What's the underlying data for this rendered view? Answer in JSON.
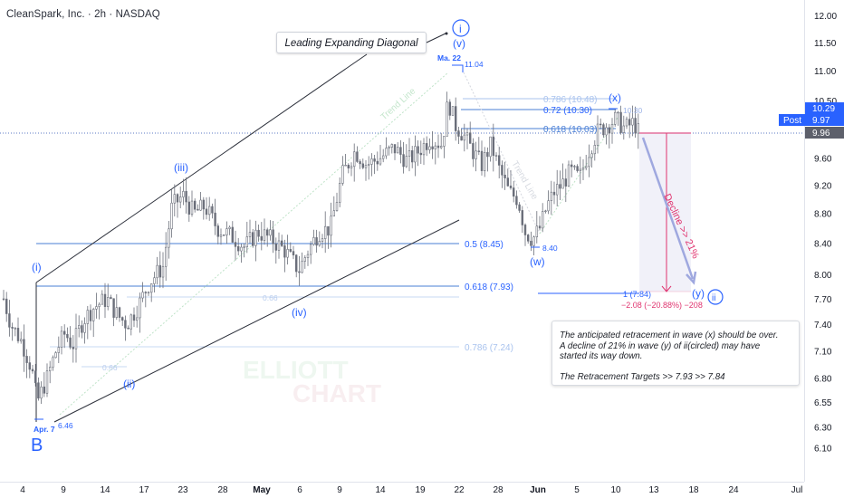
{
  "header": {
    "title": "CleanSpark, Inc. · 2h · NASDAQ"
  },
  "callout": {
    "text": "Leading Expanding Diagonal"
  },
  "note": {
    "line1": "The anticipated retracement in wave (x) should be over.",
    "line2": "A decline of 21% in wave (y) of ii(circled) may have",
    "line3": "started its way down.",
    "targets": "The Retracement Targets  >> 7.93  >>  7.84"
  },
  "watermark": {
    "line1": "ELLIOTT",
    "line2": "CHART"
  },
  "colors": {
    "wave_blue": "#2962ff",
    "fib_blue": "#4a7fd6",
    "fib_faint": "#a9c3ee",
    "decline_pink": "#e0346f",
    "post_blue": "#2962ff",
    "last_gray": "#5d606b"
  },
  "chart_data": {
    "type": "candlestick",
    "symbol": "CleanSpark, Inc.",
    "interval": "2h",
    "exchange": "NASDAQ",
    "y_axis": {
      "scale": "log",
      "ylim": [
        5.95,
        12.15
      ],
      "ticks": [
        "12.00",
        "11.50",
        "11.00",
        "10.50",
        "10.00",
        "9.60",
        "9.20",
        "8.80",
        "8.40",
        "8.00",
        "7.70",
        "7.40",
        "7.10",
        "6.80",
        "6.55",
        "6.30",
        "6.10"
      ]
    },
    "x_axis": {
      "ticks": [
        "4",
        "9",
        "14",
        "17",
        "23",
        "28",
        "May",
        "6",
        "9",
        "14",
        "19",
        "22",
        "28",
        "Jun",
        "5",
        "10",
        "13",
        "18",
        "24",
        "Jul"
      ]
    },
    "price_tags": [
      {
        "label": "",
        "value": "10.29"
      },
      {
        "label": "Post",
        "value": "9.97"
      },
      {
        "label": "",
        "value": "9.96"
      }
    ],
    "fib_levels": [
      {
        "label": "0.786 (10.48)",
        "value": 10.48
      },
      {
        "label": "0.72 (10.30)",
        "value": 10.3
      },
      {
        "label": "0.618 (10.03)",
        "value": 10.03
      },
      {
        "label": "0.5 (8.45)",
        "value": 8.45
      },
      {
        "label": "0.618 (7.93)",
        "value": 7.93
      },
      {
        "label": "0.786 (7.24)",
        "value": 7.24
      },
      {
        "label": "1 (7.84)",
        "value": 7.84
      }
    ],
    "wave_labels": [
      "B",
      "(i)",
      "(ii)",
      "(iii)",
      "(iv)",
      "(v)",
      "i",
      "(w)",
      "(x)",
      "(y)",
      "ii"
    ],
    "price_annotations": [
      {
        "label": "Apr. 7",
        "value": "6.46"
      },
      {
        "label": "Ma. 22",
        "value": "11.04"
      },
      {
        "label": "",
        "value": "8.40"
      },
      {
        "label": "",
        "value": "10.30"
      },
      {
        "label": "",
        "value": "0.66"
      },
      {
        "label": "",
        "value": "0.66"
      }
    ],
    "trend_lines": [
      "Trend Line",
      "Trend Line"
    ],
    "projection": {
      "label": "Decline >> 21%",
      "change": "−2.08 (−20.88%) −208"
    }
  }
}
